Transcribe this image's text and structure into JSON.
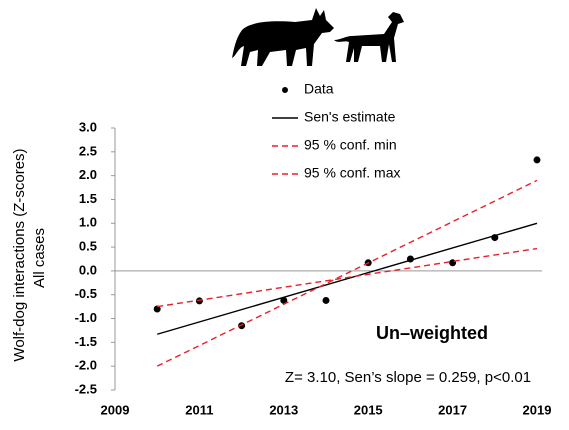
{
  "chart_data": {
    "type": "line",
    "ylabel": [
      "Wolf-dog interactions (Z-scores)",
      "All cases"
    ],
    "annotations": [
      "Un–weighted",
      "Z= 3.10, Sen’s slope = 0.259, p<0.01"
    ],
    "xlim": [
      2009,
      2019
    ],
    "xticks": [
      2009,
      2011,
      2013,
      2015,
      2017,
      2019
    ],
    "ylim": [
      -2.5,
      3.0
    ],
    "yticks": [
      {
        "value": 3.0,
        "label": "3.0"
      },
      2.5,
      {
        "value": 2.0,
        "label": "2.0"
      },
      1.5,
      {
        "value": 1.0,
        "label": "1.0"
      },
      0.5,
      {
        "value": 0.0,
        "label": "0.0"
      },
      -0.5,
      {
        "value": -1.0,
        "label": "-1.0"
      },
      -1.5,
      {
        "value": -2.0,
        "label": "-2.0"
      },
      -2.5
    ],
    "grid": false,
    "series": [
      {
        "name": "Data",
        "color": "#000000",
        "style": "points",
        "x": [
          2010,
          2011,
          2012,
          2013,
          2014,
          2015,
          2016,
          2017,
          2018,
          2019
        ],
        "values": [
          -0.8,
          -0.63,
          -1.15,
          -0.62,
          -0.62,
          0.17,
          0.25,
          0.17,
          0.7,
          2.33
        ]
      },
      {
        "name": "Sen's estimate",
        "color": "#000000",
        "style": "solid",
        "x": [
          2010,
          2019
        ],
        "values": [
          -1.33,
          1.0
        ]
      },
      {
        "name": "95 % conf. min",
        "color": "#e8202a",
        "style": "dashed",
        "x": [
          2010,
          2019
        ],
        "values": [
          -0.75,
          0.47
        ]
      },
      {
        "name": "95 % conf. max",
        "color": "#e8202a",
        "style": "dashed",
        "x": [
          2010,
          2019
        ],
        "values": [
          -2.0,
          1.9
        ]
      }
    ]
  }
}
